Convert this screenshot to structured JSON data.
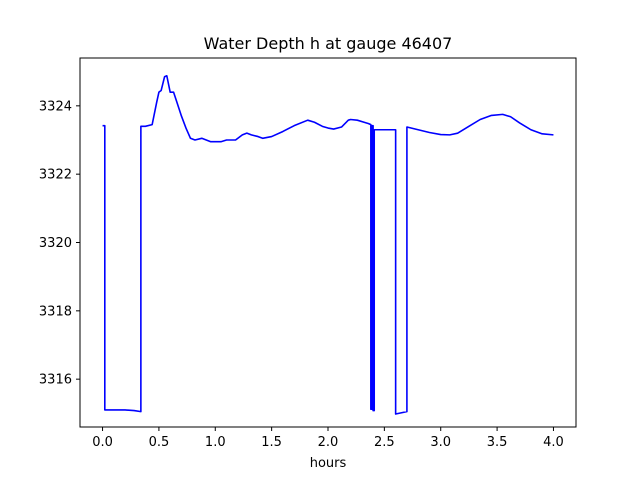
{
  "chart_data": {
    "type": "line",
    "title": "Water Depth h at gauge 46407",
    "xlabel": "hours",
    "ylabel": "",
    "xlim": [
      -0.2,
      4.2
    ],
    "ylim": [
      3314.6,
      3325.4
    ],
    "xticks": [
      0.0,
      0.5,
      1.0,
      1.5,
      2.0,
      2.5,
      3.0,
      3.5,
      4.0
    ],
    "xtick_labels": [
      "0.0",
      "0.5",
      "1.0",
      "1.5",
      "2.0",
      "2.5",
      "3.0",
      "3.5",
      "4.0"
    ],
    "yticks": [
      3316,
      3318,
      3320,
      3322,
      3324
    ],
    "ytick_labels": [
      "3316",
      "3318",
      "3320",
      "3322",
      "3324"
    ],
    "grid": false,
    "series": [
      {
        "name": "",
        "color": "#0000ff",
        "points": [
          [
            0.0,
            3323.42
          ],
          [
            0.02,
            3323.42
          ],
          [
            0.02,
            3315.1
          ],
          [
            0.1,
            3315.1
          ],
          [
            0.2,
            3315.1
          ],
          [
            0.28,
            3315.08
          ],
          [
            0.34,
            3315.05
          ],
          [
            0.34,
            3323.4
          ],
          [
            0.38,
            3323.4
          ],
          [
            0.44,
            3323.45
          ],
          [
            0.48,
            3324.1
          ],
          [
            0.5,
            3324.4
          ],
          [
            0.52,
            3324.45
          ],
          [
            0.55,
            3324.85
          ],
          [
            0.57,
            3324.88
          ],
          [
            0.6,
            3324.4
          ],
          [
            0.63,
            3324.4
          ],
          [
            0.66,
            3324.1
          ],
          [
            0.7,
            3323.7
          ],
          [
            0.74,
            3323.35
          ],
          [
            0.78,
            3323.05
          ],
          [
            0.82,
            3323.0
          ],
          [
            0.88,
            3323.05
          ],
          [
            0.92,
            3323.0
          ],
          [
            0.96,
            3322.95
          ],
          [
            1.0,
            3322.95
          ],
          [
            1.05,
            3322.95
          ],
          [
            1.1,
            3323.0
          ],
          [
            1.18,
            3323.0
          ],
          [
            1.24,
            3323.15
          ],
          [
            1.28,
            3323.2
          ],
          [
            1.32,
            3323.15
          ],
          [
            1.38,
            3323.1
          ],
          [
            1.42,
            3323.05
          ],
          [
            1.5,
            3323.1
          ],
          [
            1.6,
            3323.25
          ],
          [
            1.7,
            3323.42
          ],
          [
            1.82,
            3323.58
          ],
          [
            1.88,
            3323.52
          ],
          [
            1.95,
            3323.4
          ],
          [
            2.0,
            3323.35
          ],
          [
            2.05,
            3323.32
          ],
          [
            2.12,
            3323.38
          ],
          [
            2.18,
            3323.58
          ],
          [
            2.2,
            3323.6
          ],
          [
            2.26,
            3323.58
          ],
          [
            2.32,
            3323.52
          ],
          [
            2.36,
            3323.48
          ],
          [
            2.38,
            3323.45
          ],
          [
            2.38,
            3315.12
          ],
          [
            2.39,
            3315.12
          ],
          [
            2.39,
            3323.42
          ],
          [
            2.4,
            3323.42
          ],
          [
            2.4,
            3315.08
          ],
          [
            2.41,
            3315.08
          ],
          [
            2.41,
            3323.3
          ],
          [
            2.46,
            3323.3
          ],
          [
            2.54,
            3323.3
          ],
          [
            2.6,
            3323.3
          ],
          [
            2.6,
            3314.98
          ],
          [
            2.7,
            3315.05
          ],
          [
            2.7,
            3323.38
          ],
          [
            2.8,
            3323.3
          ],
          [
            2.9,
            3323.22
          ],
          [
            3.0,
            3323.16
          ],
          [
            3.08,
            3323.15
          ],
          [
            3.15,
            3323.2
          ],
          [
            3.25,
            3323.4
          ],
          [
            3.35,
            3323.6
          ],
          [
            3.45,
            3323.72
          ],
          [
            3.55,
            3323.75
          ],
          [
            3.62,
            3323.68
          ],
          [
            3.7,
            3323.5
          ],
          [
            3.8,
            3323.3
          ],
          [
            3.9,
            3323.18
          ],
          [
            4.0,
            3323.15
          ]
        ]
      }
    ]
  }
}
